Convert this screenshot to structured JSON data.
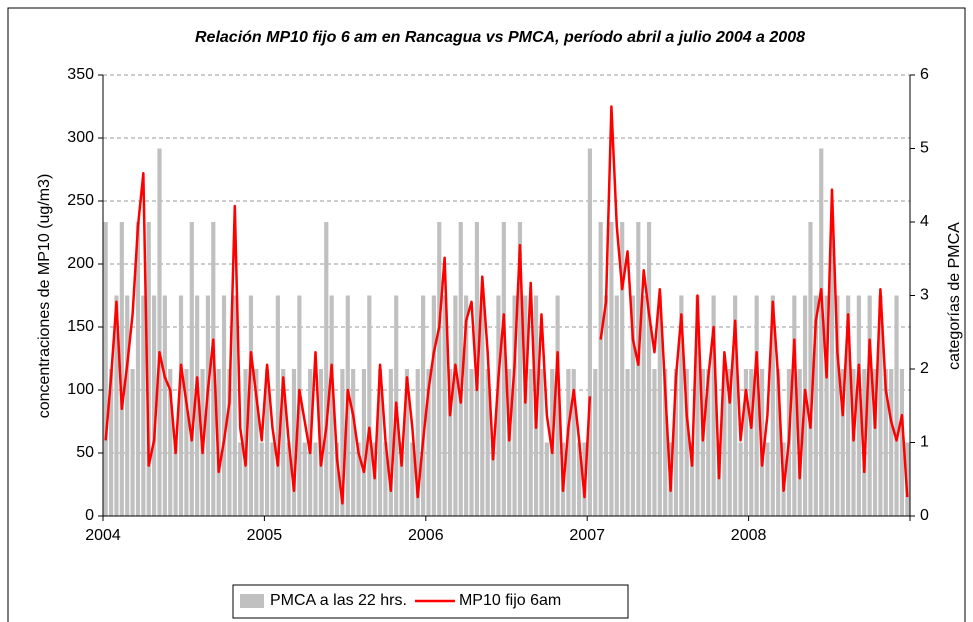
{
  "chart_data": {
    "type": "bar-line",
    "title": "Relación MP10 fijo 6 am en Rancagua vs PMCA, período abril a julio 2004 a 2008",
    "ylabel": "concentraciones de MP10 (ug/m3)",
    "y2label": "categorías de PMCA",
    "categories": [
      "2004",
      null,
      null,
      null,
      null,
      null,
      null,
      null,
      null,
      null,
      null,
      null,
      null,
      null,
      null,
      null,
      null,
      null,
      null,
      null,
      null,
      null,
      null,
      null,
      null,
      null,
      null,
      null,
      null,
      null,
      "2005",
      null,
      null,
      null,
      null,
      null,
      null,
      null,
      null,
      null,
      null,
      null,
      null,
      null,
      null,
      null,
      null,
      null,
      null,
      null,
      null,
      null,
      null,
      null,
      null,
      null,
      null,
      null,
      null,
      null,
      "2006",
      null,
      null,
      null,
      null,
      null,
      null,
      null,
      null,
      null,
      null,
      null,
      null,
      null,
      null,
      null,
      null,
      null,
      null,
      null,
      null,
      null,
      null,
      null,
      null,
      null,
      null,
      null,
      null,
      null,
      "2007",
      null,
      null,
      null,
      null,
      null,
      null,
      null,
      null,
      null,
      null,
      null,
      null,
      null,
      null,
      null,
      null,
      null,
      null,
      null,
      null,
      null,
      null,
      null,
      null,
      null,
      null,
      null,
      null,
      null,
      "2008",
      null,
      null,
      null,
      null,
      null,
      null,
      null,
      null,
      null,
      null,
      null,
      null,
      null,
      null,
      null,
      null,
      null,
      null,
      null,
      null,
      null,
      null,
      null,
      null,
      null,
      null,
      null,
      null,
      null
    ],
    "series": [
      {
        "name": "PMCA a las 22 hrs.",
        "color": "#c0c0c0",
        "kind": "bar",
        "axis": "y2",
        "values": [
          4,
          2,
          3,
          4,
          3,
          2,
          4,
          3,
          4,
          3,
          5,
          3,
          2,
          1,
          3,
          2,
          4,
          3,
          2,
          3,
          4,
          2,
          3,
          2,
          3,
          1,
          2,
          3,
          2,
          1,
          2,
          1,
          3,
          2,
          1,
          2,
          3,
          1,
          2,
          1,
          2,
          4,
          3,
          1,
          2,
          3,
          2,
          1,
          2,
          3,
          1,
          2,
          1,
          2,
          3,
          1,
          2,
          1,
          2,
          3,
          2,
          3,
          4,
          3,
          2,
          3,
          4,
          3,
          2,
          4,
          3,
          2,
          1,
          3,
          4,
          2,
          3,
          4,
          3,
          2,
          3,
          2,
          1,
          2,
          3,
          1,
          2,
          2,
          1,
          1,
          5,
          2,
          4,
          3,
          4,
          3,
          4,
          2,
          3,
          4,
          3,
          4,
          2,
          3,
          2,
          1,
          2,
          3,
          2,
          1,
          3,
          2,
          2,
          3,
          1,
          2,
          2,
          3,
          1,
          2,
          2,
          3,
          2,
          1,
          3,
          2,
          1,
          2,
          3,
          2,
          3,
          4,
          3,
          5,
          3,
          4,
          3,
          2,
          3,
          2,
          3,
          2,
          3,
          2,
          3,
          2,
          2,
          3,
          2,
          1
        ]
      },
      {
        "name": "MP10 fijo 6am",
        "color": "#ff0000",
        "kind": "line",
        "values": [
          60,
          110,
          170,
          85,
          120,
          160,
          230,
          272,
          40,
          60,
          130,
          110,
          100,
          50,
          120,
          90,
          60,
          110,
          50,
          100,
          140,
          35,
          60,
          90,
          246,
          70,
          40,
          130,
          95,
          60,
          120,
          70,
          40,
          110,
          60,
          20,
          100,
          75,
          50,
          130,
          40,
          70,
          120,
          45,
          10,
          100,
          80,
          50,
          35,
          70,
          30,
          120,
          60,
          20,
          90,
          40,
          110,
          70,
          15,
          60,
          100,
          130,
          150,
          205,
          80,
          120,
          90,
          155,
          170,
          100,
          190,
          130,
          45,
          110,
          160,
          60,
          120,
          215,
          90,
          185,
          70,
          160,
          80,
          50,
          130,
          20,
          70,
          100,
          60,
          15,
          95,
          null,
          140,
          170,
          325,
          230,
          180,
          210,
          140,
          120,
          195,
          160,
          130,
          180,
          100,
          20,
          110,
          160,
          80,
          40,
          175,
          60,
          110,
          150,
          30,
          130,
          90,
          155,
          60,
          100,
          70,
          130,
          40,
          80,
          170,
          110,
          20,
          60,
          140,
          30,
          100,
          70,
          155,
          180,
          110,
          259,
          130,
          80,
          160,
          60,
          120,
          35,
          140,
          70,
          180,
          100,
          75,
          60,
          80,
          15
        ]
      }
    ],
    "ylim": [
      0,
      350
    ],
    "yticks": [
      0,
      50,
      100,
      150,
      200,
      250,
      300,
      350
    ],
    "y2lim": [
      0,
      6
    ],
    "y2ticks": [
      0,
      1,
      2,
      3,
      4,
      5,
      6
    ],
    "grid": true,
    "legend": "bottom"
  }
}
